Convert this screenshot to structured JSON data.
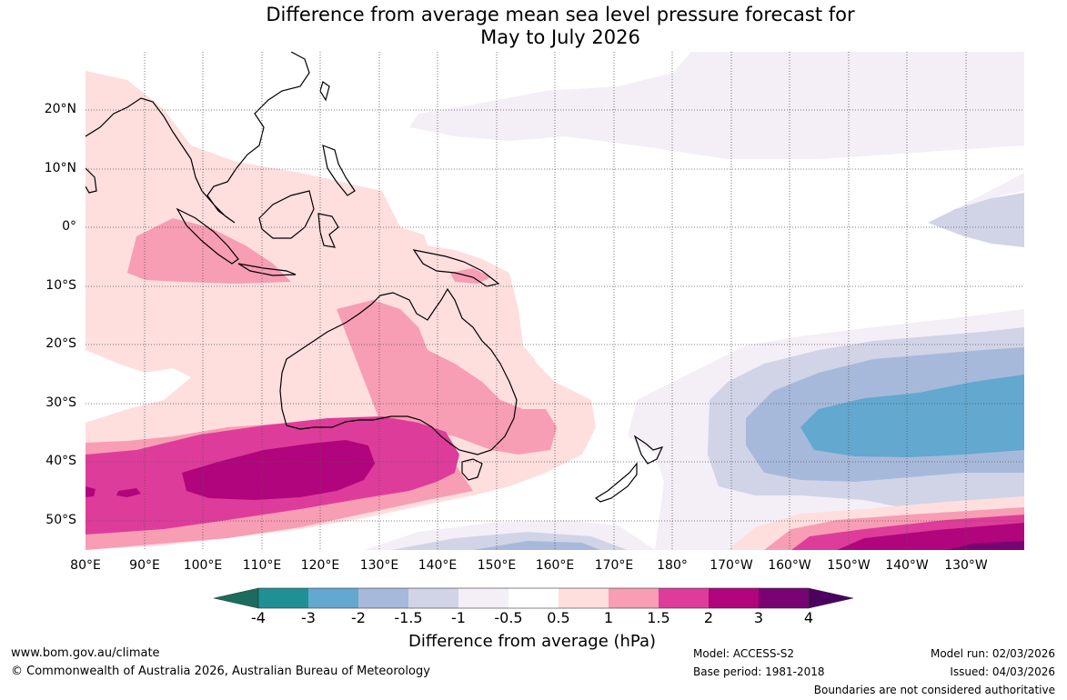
{
  "title_line1": "Difference from average mean sea level pressure forecast for",
  "title_line2": "May to July 2026",
  "lat_labels": [
    "20°N",
    "10°N",
    "0°",
    "10°S",
    "20°S",
    "30°S",
    "40°S",
    "50°S"
  ],
  "lon_labels": [
    "80°E",
    "90°E",
    "100°E",
    "110°E",
    "120°E",
    "130°E",
    "140°E",
    "150°E",
    "160°E",
    "170°E",
    "180°",
    "170°W",
    "160°W",
    "150°W",
    "140°W",
    "130°W"
  ],
  "colorbar": {
    "ticks": [
      "-4",
      "-3",
      "-2",
      "-1.5",
      "-1",
      "-0.5",
      "0.5",
      "1",
      "1.5",
      "2",
      "3",
      "4"
    ],
    "colors": [
      "#1b6b5e",
      "#1f9094",
      "#62a8cf",
      "#a7b9db",
      "#d1d4e7",
      "#f4eef7",
      "#ffffff",
      "#ffdede",
      "#f79db4",
      "#de3c9a",
      "#b0057c",
      "#7a0374",
      "#4c0060"
    ],
    "label": "Difference from average (hPa)"
  },
  "footer": {
    "website": "www.bom.gov.au/climate",
    "copyright": "© Commonwealth of Australia 2026, Australian Bureau of Meteorology",
    "model": "Model: ACCESS-S2",
    "base_period": "Base period: 1981-2018",
    "model_run": "Model run: 02/03/2026",
    "issued": "Issued: 04/03/2026",
    "boundaries": "Boundaries are not considered authoritative"
  }
}
